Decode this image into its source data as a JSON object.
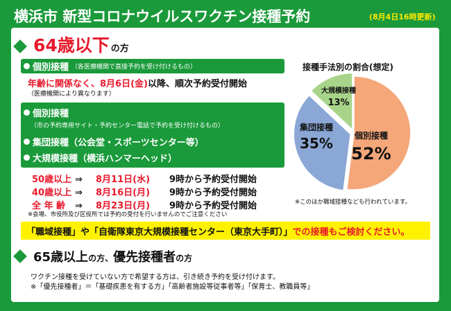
{
  "header": {
    "title": "横浜市 新型コロナウイルスワクチン接種予約",
    "updated": "(8月4日16時更新)"
  },
  "under65": {
    "heading_big": "64歳以下",
    "heading_small": "の方",
    "individual": {
      "label": "個別接種",
      "sub": "（各医療機関で直接予約を受け付けるもの）",
      "notice_red": "年齢に関係なく、8月6日(金)",
      "notice_black": "以降、順次予約受付開始",
      "note": "（医療機関により異なります）"
    },
    "group_box": {
      "individual_label": "個別接種",
      "individual_sub": "（市の予約専用サイト・予約センター電話で予約を受け付けるもの）",
      "group_label": "集団接種（公会堂・スポーツセンター等）",
      "mass_label": "大規模接種（横浜ハンマーヘッド）"
    },
    "schedule": [
      {
        "age": "50歳以上",
        "arrow": "⇒",
        "date": "8月11日(水)",
        "time": "9時から予約受付開始"
      },
      {
        "age": "40歳以上",
        "arrow": "⇒",
        "date": "8月16日(月)",
        "time": "9時から予約受付開始"
      },
      {
        "age": "全 年 齢",
        "arrow": "⇒",
        "date": "8月23日(月)",
        "time": "9時から予約受付開始"
      }
    ],
    "schedule_note": "※会場、市役所及び区役所では予約の受付を行いませんのでご注意ください"
  },
  "chart_data": {
    "type": "pie",
    "title": "接種手法別の割合(想定)",
    "slices": [
      {
        "label": "個別接種",
        "value": 52,
        "display": "52%",
        "color": "#f5a77a"
      },
      {
        "label": "集団接種",
        "value": 35,
        "display": "35%",
        "color": "#8aa7d6"
      },
      {
        "label": "大規模接種",
        "value": 13,
        "display": "13%",
        "color": "#a8d48a"
      }
    ],
    "note": "※このほか職域接種なども行われています。"
  },
  "yellow_band": {
    "part1": "「職域接種」や「自衛隊東京大規模接種センター（東京大手町）」",
    "part2": "での接種もご検討ください。"
  },
  "over65": {
    "heading_a": "65歳以上",
    "heading_b": "の方、",
    "heading_c": "優先接種者",
    "heading_d": "の方",
    "line1": "ワクチン接種を受けていない方で希望する方は、引き続き予約を受け付けます。",
    "line2": "※「優先接種者」＝「基礎疾患を有する方」「高齢者施設等従事者等」「保育士、教職員等」"
  },
  "colors": {
    "brand_green": "#1a9a3a",
    "accent_red": "#e8192c",
    "highlight_yellow": "#fff200"
  }
}
